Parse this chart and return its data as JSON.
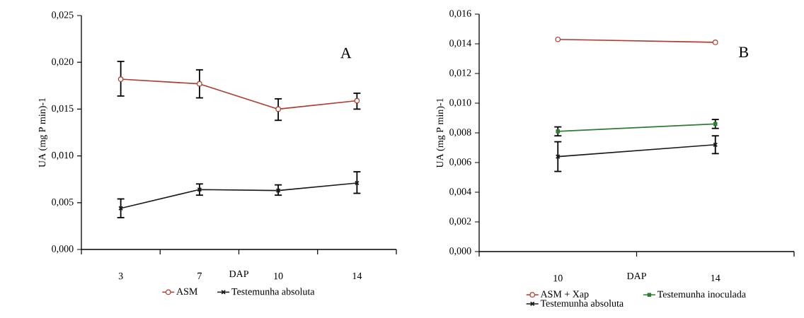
{
  "chart_data": [
    {
      "type": "line",
      "categories": [
        "3",
        "7",
        "10",
        "14"
      ],
      "xlabel": "DAP",
      "ylabel": "UA (mg P min)-1",
      "annotations": [
        "A"
      ],
      "ylim": [
        0,
        0.025
      ],
      "yticks": [
        {
          "value": 0,
          "label": "0,000"
        },
        {
          "value": 0.005,
          "label": "0,005"
        },
        {
          "value": 0.01,
          "label": "0,010"
        },
        {
          "value": 0.015,
          "label": "0,015"
        },
        {
          "value": 0.02,
          "label": "0,020"
        },
        {
          "value": 0.025,
          "label": "0,025"
        }
      ],
      "legend": "bottom",
      "series": [
        {
          "name": "ASM",
          "color": "#b03a2e",
          "marker": "circle",
          "values": [
            0.0182,
            0.0177,
            0.015,
            0.0159
          ],
          "errors": [
            [
              0.0164,
              0.0201
            ],
            [
              0.0162,
              0.0192
            ],
            [
              0.0138,
              0.0161
            ],
            [
              0.015,
              0.0167
            ]
          ]
        },
        {
          "name": "Testemunha absoluta",
          "color": "#1a1a1a",
          "marker": "cross",
          "values": [
            0.0044,
            0.0064,
            0.0063,
            0.0071
          ],
          "errors": [
            [
              0.0034,
              0.0054
            ],
            [
              0.0058,
              0.007
            ],
            [
              0.0058,
              0.0069
            ],
            [
              0.006,
              0.0083
            ]
          ]
        }
      ]
    },
    {
      "type": "line",
      "categories": [
        "10",
        "14"
      ],
      "xlabel": "DAP",
      "ylabel": "UA (mg P min)-1",
      "annotations": [
        "B"
      ],
      "ylim": [
        0,
        0.016
      ],
      "yticks": [
        {
          "value": 0,
          "label": "0,000"
        },
        {
          "value": 0.002,
          "label": "0,002"
        },
        {
          "value": 0.004,
          "label": "0,004"
        },
        {
          "value": 0.006,
          "label": "0,006"
        },
        {
          "value": 0.008,
          "label": "0,008"
        },
        {
          "value": 0.01,
          "label": "0,010"
        },
        {
          "value": 0.012,
          "label": "0,012"
        },
        {
          "value": 0.014,
          "label": "0,014"
        },
        {
          "value": 0.016,
          "label": "0,016"
        }
      ],
      "legend": "bottom",
      "series": [
        {
          "name": "ASM + Xap",
          "color": "#b03a2e",
          "marker": "circle",
          "values": [
            0.0143,
            0.0141
          ]
        },
        {
          "name": "Testemunha inoculada",
          "color": "#2e7d32",
          "marker": "square",
          "values": [
            0.0081,
            0.0086
          ],
          "errors": [
            [
              0.0078,
              0.0084
            ],
            [
              0.0083,
              0.0089
            ]
          ]
        },
        {
          "name": "Testemunha absoluta",
          "color": "#1a1a1a",
          "marker": "cross",
          "values": [
            0.0064,
            0.0072
          ],
          "errors": [
            [
              0.0054,
              0.0074
            ],
            [
              0.0066,
              0.0078
            ]
          ]
        }
      ]
    }
  ]
}
